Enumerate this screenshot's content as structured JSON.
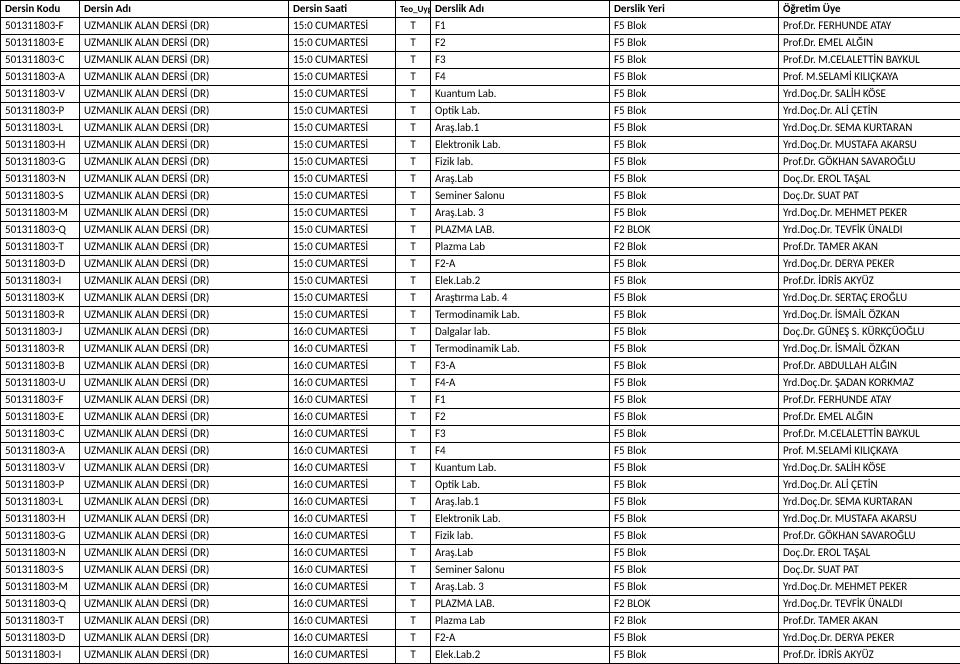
{
  "headers": {
    "code": "Dersin Kodu",
    "name": "Dersin Adı",
    "time": "Dersin Saati",
    "teo": "Teo_Uyg",
    "room": "Derslik Adı",
    "loc": "Derslik Yeri",
    "teacher": "Öğretim Üye"
  },
  "rows": [
    {
      "code": "501311803-F",
      "name": "UZMANLIK ALAN DERSİ (DR)",
      "time": "15:0 CUMARTESİ",
      "teo": "T",
      "room": "F1",
      "loc": "F5 Blok",
      "teacher": "Prof.Dr. FERHUNDE ATAY"
    },
    {
      "code": "501311803-E",
      "name": "UZMANLIK ALAN DERSİ (DR)",
      "time": "15:0 CUMARTESİ",
      "teo": "T",
      "room": "F2",
      "loc": "F5 Blok",
      "teacher": "Prof.Dr. EMEL ALĞIN"
    },
    {
      "code": "501311803-C",
      "name": "UZMANLIK ALAN DERSİ (DR)",
      "time": "15:0 CUMARTESİ",
      "teo": "T",
      "room": "F3",
      "loc": "F5 Blok",
      "teacher": "Prof.Dr. M.CELALETTİN BAYKUL"
    },
    {
      "code": "501311803-A",
      "name": "UZMANLIK ALAN DERSİ (DR)",
      "time": "15:0 CUMARTESİ",
      "teo": "T",
      "room": "F4",
      "loc": "F5 Blok",
      "teacher": "Prof. M.SELAMİ KILIÇKAYA"
    },
    {
      "code": "501311803-V",
      "name": "UZMANLIK ALAN DERSİ (DR)",
      "time": "15:0 CUMARTESİ",
      "teo": "T",
      "room": "Kuantum Lab.",
      "loc": "F5 Blok",
      "teacher": "Yrd.Doç.Dr. SALİH KÖSE"
    },
    {
      "code": "501311803-P",
      "name": "UZMANLIK ALAN DERSİ (DR)",
      "time": "15:0 CUMARTESİ",
      "teo": "T",
      "room": "Optik Lab.",
      "loc": "F5 Blok",
      "teacher": "Yrd.Doç.Dr. ALİ ÇETİN"
    },
    {
      "code": "501311803-L",
      "name": "UZMANLIK ALAN DERSİ (DR)",
      "time": "15:0 CUMARTESİ",
      "teo": "T",
      "room": "Araş.lab.1",
      "loc": "F5 Blok",
      "teacher": "Yrd.Doç.Dr. SEMA KURTARAN"
    },
    {
      "code": "501311803-H",
      "name": "UZMANLIK ALAN DERSİ (DR)",
      "time": "15:0 CUMARTESİ",
      "teo": "T",
      "room": "Elektronik Lab.",
      "loc": "F5 Blok",
      "teacher": "Yrd.Doç.Dr. MUSTAFA AKARSU"
    },
    {
      "code": "501311803-G",
      "name": "UZMANLIK ALAN DERSİ (DR)",
      "time": "15:0 CUMARTESİ",
      "teo": "T",
      "room": "Fizik lab.",
      "loc": "F5 Blok",
      "teacher": "Prof.Dr. GÖKHAN SAVAROĞLU"
    },
    {
      "code": "501311803-N",
      "name": "UZMANLIK ALAN DERSİ (DR)",
      "time": "15:0 CUMARTESİ",
      "teo": "T",
      "room": "Araş.Lab",
      "loc": "F5 Blok",
      "teacher": "Doç.Dr. EROL TAŞAL"
    },
    {
      "code": "501311803-S",
      "name": "UZMANLIK ALAN DERSİ (DR)",
      "time": "15:0 CUMARTESİ",
      "teo": "T",
      "room": "Seminer Salonu",
      "loc": "F5 Blok",
      "teacher": "Doç.Dr. SUAT PAT"
    },
    {
      "code": "501311803-M",
      "name": "UZMANLIK ALAN DERSİ (DR)",
      "time": "15:0 CUMARTESİ",
      "teo": "T",
      "room": "Araş.Lab. 3",
      "loc": "F5 Blok",
      "teacher": "Yrd.Doç.Dr. MEHMET PEKER"
    },
    {
      "code": "501311803-Q",
      "name": "UZMANLIK ALAN DERSİ (DR)",
      "time": "15:0 CUMARTESİ",
      "teo": "T",
      "room": "PLAZMA LAB.",
      "loc": "F2 BLOK",
      "teacher": "Yrd.Doç.Dr. TEVFİK ÜNALDI"
    },
    {
      "code": "501311803-T",
      "name": "UZMANLIK ALAN DERSİ (DR)",
      "time": "15:0 CUMARTESİ",
      "teo": "T",
      "room": "Plazma Lab",
      "loc": "F2 Blok",
      "teacher": "Prof.Dr. TAMER AKAN"
    },
    {
      "code": "501311803-D",
      "name": "UZMANLIK ALAN DERSİ (DR)",
      "time": "15:0 CUMARTESİ",
      "teo": "T",
      "room": "F2-A",
      "loc": "F5 Blok",
      "teacher": "Yrd.Doç.Dr. DERYA PEKER"
    },
    {
      "code": "501311803-I",
      "name": "UZMANLIK ALAN DERSİ (DR)",
      "time": "15:0 CUMARTESİ",
      "teo": "T",
      "room": "Elek.Lab.2",
      "loc": "F5 Blok",
      "teacher": "Prof.Dr. İDRİS AKYÜZ"
    },
    {
      "code": "501311803-K",
      "name": "UZMANLIK ALAN DERSİ (DR)",
      "time": "15:0 CUMARTESİ",
      "teo": "T",
      "room": "Araştırma Lab. 4",
      "loc": "F5 Blok",
      "teacher": "Yrd.Doç.Dr. SERTAÇ EROĞLU"
    },
    {
      "code": "501311803-R",
      "name": "UZMANLIK ALAN DERSİ (DR)",
      "time": "15:0 CUMARTESİ",
      "teo": "T",
      "room": "Termodinamik Lab.",
      "loc": "F5 Blok",
      "teacher": "Yrd.Doç.Dr. İSMAİL ÖZKAN"
    },
    {
      "code": "501311803-J",
      "name": "UZMANLIK ALAN DERSİ (DR)",
      "time": "16:0 CUMARTESİ",
      "teo": "T",
      "room": "Dalgalar lab.",
      "loc": "F5 Blok",
      "teacher": "Doç.Dr. GÜNEŞ S. KÜRKÇÜOĞLU"
    },
    {
      "code": "501311803-R",
      "name": "UZMANLIK ALAN DERSİ (DR)",
      "time": "16:0 CUMARTESİ",
      "teo": "T",
      "room": "Termodinamik Lab.",
      "loc": "F5 Blok",
      "teacher": "Yrd.Doç.Dr. İSMAİL ÖZKAN"
    },
    {
      "code": "501311803-B",
      "name": "UZMANLIK ALAN DERSİ (DR)",
      "time": "16:0 CUMARTESİ",
      "teo": "T",
      "room": "F3-A",
      "loc": "F5 Blok",
      "teacher": "Prof.Dr. ABDULLAH ALĞIN"
    },
    {
      "code": "501311803-U",
      "name": "UZMANLIK ALAN DERSİ (DR)",
      "time": "16:0 CUMARTESİ",
      "teo": "T",
      "room": "F4-A",
      "loc": "F5 Blok",
      "teacher": "Yrd.Doç.Dr. ŞADAN KORKMAZ"
    },
    {
      "code": "501311803-F",
      "name": "UZMANLIK ALAN DERSİ (DR)",
      "time": "16:0 CUMARTESİ",
      "teo": "T",
      "room": "F1",
      "loc": "F5 Blok",
      "teacher": "Prof.Dr. FERHUNDE ATAY"
    },
    {
      "code": "501311803-E",
      "name": "UZMANLIK ALAN DERSİ (DR)",
      "time": "16:0 CUMARTESİ",
      "teo": "T",
      "room": "F2",
      "loc": "F5 Blok",
      "teacher": "Prof.Dr. EMEL ALĞIN"
    },
    {
      "code": "501311803-C",
      "name": "UZMANLIK ALAN DERSİ (DR)",
      "time": "16:0 CUMARTESİ",
      "teo": "T",
      "room": "F3",
      "loc": "F5 Blok",
      "teacher": "Prof.Dr. M.CELALETTİN BAYKUL"
    },
    {
      "code": "501311803-A",
      "name": "UZMANLIK ALAN DERSİ (DR)",
      "time": "16:0 CUMARTESİ",
      "teo": "T",
      "room": "F4",
      "loc": "F5 Blok",
      "teacher": "Prof. M.SELAMİ KILIÇKAYA"
    },
    {
      "code": "501311803-V",
      "name": "UZMANLIK ALAN DERSİ (DR)",
      "time": "16:0 CUMARTESİ",
      "teo": "T",
      "room": "Kuantum Lab.",
      "loc": "F5 Blok",
      "teacher": "Yrd.Doç.Dr. SALİH KÖSE"
    },
    {
      "code": "501311803-P",
      "name": "UZMANLIK ALAN DERSİ (DR)",
      "time": "16:0 CUMARTESİ",
      "teo": "T",
      "room": "Optik Lab.",
      "loc": "F5 Blok",
      "teacher": "Yrd.Doç.Dr. ALİ ÇETİN"
    },
    {
      "code": "501311803-L",
      "name": "UZMANLIK ALAN DERSİ (DR)",
      "time": "16:0 CUMARTESİ",
      "teo": "T",
      "room": "Araş.lab.1",
      "loc": "F5 Blok",
      "teacher": "Yrd.Doç.Dr. SEMA KURTARAN"
    },
    {
      "code": "501311803-H",
      "name": "UZMANLIK ALAN DERSİ (DR)",
      "time": "16:0 CUMARTESİ",
      "teo": "T",
      "room": "Elektronik Lab.",
      "loc": "F5 Blok",
      "teacher": "Yrd.Doç.Dr. MUSTAFA AKARSU"
    },
    {
      "code": "501311803-G",
      "name": "UZMANLIK ALAN DERSİ (DR)",
      "time": "16:0 CUMARTESİ",
      "teo": "T",
      "room": "Fizik lab.",
      "loc": "F5 Blok",
      "teacher": "Prof.Dr. GÖKHAN SAVAROĞLU"
    },
    {
      "code": "501311803-N",
      "name": "UZMANLIK ALAN DERSİ (DR)",
      "time": "16:0 CUMARTESİ",
      "teo": "T",
      "room": "Araş.Lab",
      "loc": "F5 Blok",
      "teacher": "Doç.Dr. EROL TAŞAL"
    },
    {
      "code": "501311803-S",
      "name": "UZMANLIK ALAN DERSİ (DR)",
      "time": "16:0 CUMARTESİ",
      "teo": "T",
      "room": "Seminer Salonu",
      "loc": "F5 Blok",
      "teacher": "Doç.Dr. SUAT PAT"
    },
    {
      "code": "501311803-M",
      "name": "UZMANLIK ALAN DERSİ (DR)",
      "time": "16:0 CUMARTESİ",
      "teo": "T",
      "room": "Araş.Lab. 3",
      "loc": "F5 Blok",
      "teacher": "Yrd.Doç.Dr. MEHMET PEKER"
    },
    {
      "code": "501311803-Q",
      "name": "UZMANLIK ALAN DERSİ (DR)",
      "time": "16:0 CUMARTESİ",
      "teo": "T",
      "room": "PLAZMA LAB.",
      "loc": "F2 BLOK",
      "teacher": "Yrd.Doç.Dr. TEVFİK ÜNALDI"
    },
    {
      "code": "501311803-T",
      "name": "UZMANLIK ALAN DERSİ (DR)",
      "time": "16:0 CUMARTESİ",
      "teo": "T",
      "room": "Plazma Lab",
      "loc": "F2 Blok",
      "teacher": "Prof.Dr. TAMER AKAN"
    },
    {
      "code": "501311803-D",
      "name": "UZMANLIK ALAN DERSİ (DR)",
      "time": "16:0 CUMARTESİ",
      "teo": "T",
      "room": "F2-A",
      "loc": "F5 Blok",
      "teacher": "Yrd.Doç.Dr. DERYA PEKER"
    },
    {
      "code": "501311803-I",
      "name": "UZMANLIK ALAN DERSİ (DR)",
      "time": "16:0 CUMARTESİ",
      "teo": "T",
      "room": "Elek.Lab.2",
      "loc": "F5 Blok",
      "teacher": "Prof.Dr. İDRİS AKYÜZ"
    }
  ]
}
